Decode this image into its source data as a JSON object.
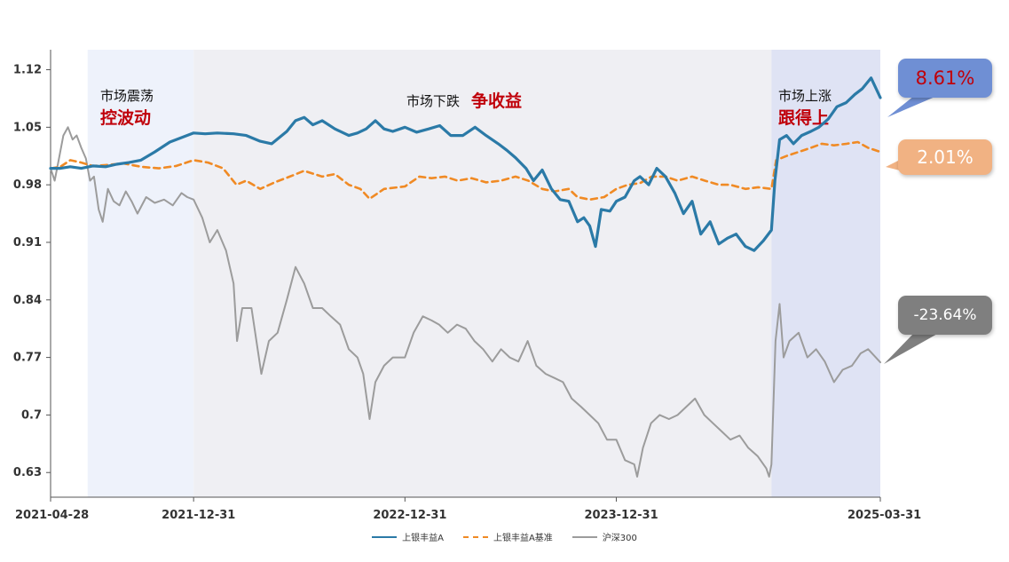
{
  "colors": {
    "fund": "#2b7aa7",
    "benchmark": "#f08a24",
    "index": "#9c9c9c",
    "band_light": "#eef2fb",
    "band_mid": "#efeff3",
    "band_right": "#dfe3f4",
    "callout_fund": "#6f8fd4",
    "callout_bench": "#f1b283",
    "callout_index": "#7f7f7f",
    "emph_text": "#c0000a",
    "fund_value_text": "#c0000a"
  },
  "phases": [
    {
      "line1": "市场震荡",
      "line2": "控波动"
    },
    {
      "line1": "市场下跌",
      "line2": "争收益"
    },
    {
      "line1": "市场上涨",
      "line2": "跟得上"
    }
  ],
  "callouts": {
    "fund": "8.61%",
    "benchmark": "2.01%",
    "index": "-23.64%"
  },
  "legend": {
    "fund": "上银丰益A",
    "benchmark": "上银丰益A基准",
    "index": "沪深300"
  },
  "chart_data": {
    "type": "line",
    "title": "",
    "xlabel": "",
    "ylabel": "",
    "x_ticks": [
      "2021-04-28",
      "2021-12-31",
      "2022-12-31",
      "2023-12-31",
      "2025-03-31"
    ],
    "y_ticks": [
      "0.63",
      "0.7",
      "0.77",
      "0.84",
      "0.91",
      "0.98",
      "1.05",
      "1.12"
    ],
    "ylim": [
      0.6,
      1.14
    ],
    "xlim": [
      "2021-04-28",
      "2025-03-31"
    ],
    "grid": false,
    "legend_position": "bottom",
    "shaded_periods": [
      {
        "from": "2021-07-01",
        "to": "2021-12-31",
        "fill": "band_light"
      },
      {
        "from": "2021-12-31",
        "to": "2024-09-24",
        "fill": "band_mid"
      },
      {
        "from": "2024-09-24",
        "to": "2025-03-31",
        "fill": "band_right"
      }
    ],
    "series": [
      {
        "name": "上银丰益A",
        "key": "fund",
        "dashed": false,
        "points": [
          [
            "2021-04-28",
            1.0
          ],
          [
            "2021-05-15",
            1.0
          ],
          [
            "2021-06-01",
            1.002
          ],
          [
            "2021-06-20",
            1.0
          ],
          [
            "2021-07-10",
            1.003
          ],
          [
            "2021-08-01",
            1.002
          ],
          [
            "2021-08-20",
            1.005
          ],
          [
            "2021-09-10",
            1.007
          ],
          [
            "2021-10-01",
            1.01
          ],
          [
            "2021-10-25",
            1.02
          ],
          [
            "2021-11-20",
            1.032
          ],
          [
            "2021-12-31",
            1.043
          ],
          [
            "2022-01-20",
            1.042
          ],
          [
            "2022-02-10",
            1.043
          ],
          [
            "2022-03-10",
            1.042
          ],
          [
            "2022-04-01",
            1.04
          ],
          [
            "2022-04-25",
            1.033
          ],
          [
            "2022-05-15",
            1.03
          ],
          [
            "2022-06-10",
            1.045
          ],
          [
            "2022-06-25",
            1.058
          ],
          [
            "2022-07-10",
            1.062
          ],
          [
            "2022-07-25",
            1.053
          ],
          [
            "2022-08-10",
            1.058
          ],
          [
            "2022-09-01",
            1.048
          ],
          [
            "2022-09-25",
            1.04
          ],
          [
            "2022-10-10",
            1.043
          ],
          [
            "2022-10-25",
            1.048
          ],
          [
            "2022-11-10",
            1.058
          ],
          [
            "2022-11-25",
            1.048
          ],
          [
            "2022-12-10",
            1.045
          ],
          [
            "2022-12-31",
            1.05
          ],
          [
            "2023-01-20",
            1.044
          ],
          [
            "2023-02-10",
            1.048
          ],
          [
            "2023-03-01",
            1.052
          ],
          [
            "2023-03-20",
            1.04
          ],
          [
            "2023-04-10",
            1.04
          ],
          [
            "2023-05-01",
            1.05
          ],
          [
            "2023-05-20",
            1.04
          ],
          [
            "2023-06-10",
            1.03
          ],
          [
            "2023-06-25",
            1.022
          ],
          [
            "2023-07-10",
            1.013
          ],
          [
            "2023-07-28",
            1.0
          ],
          [
            "2023-08-10",
            0.985
          ],
          [
            "2023-08-25",
            0.998
          ],
          [
            "2023-09-10",
            0.975
          ],
          [
            "2023-09-25",
            0.962
          ],
          [
            "2023-10-10",
            0.96
          ],
          [
            "2023-10-25",
            0.935
          ],
          [
            "2023-11-05",
            0.94
          ],
          [
            "2023-11-15",
            0.93
          ],
          [
            "2023-11-25",
            0.905
          ],
          [
            "2023-12-05",
            0.95
          ],
          [
            "2023-12-20",
            0.948
          ],
          [
            "2023-12-31",
            0.96
          ],
          [
            "2024-01-15",
            0.965
          ],
          [
            "2024-01-31",
            0.985
          ],
          [
            "2024-02-10",
            0.99
          ],
          [
            "2024-02-25",
            0.98
          ],
          [
            "2024-03-10",
            1.0
          ],
          [
            "2024-03-25",
            0.99
          ],
          [
            "2024-04-10",
            0.97
          ],
          [
            "2024-04-25",
            0.945
          ],
          [
            "2024-05-10",
            0.96
          ],
          [
            "2024-05-25",
            0.92
          ],
          [
            "2024-06-10",
            0.935
          ],
          [
            "2024-06-25",
            0.908
          ],
          [
            "2024-07-10",
            0.915
          ],
          [
            "2024-07-25",
            0.92
          ],
          [
            "2024-08-10",
            0.905
          ],
          [
            "2024-08-25",
            0.9
          ],
          [
            "2024-09-10",
            0.912
          ],
          [
            "2024-09-24",
            0.925
          ],
          [
            "2024-09-30",
            0.985
          ],
          [
            "2024-10-08",
            1.035
          ],
          [
            "2024-10-20",
            1.04
          ],
          [
            "2024-11-01",
            1.03
          ],
          [
            "2024-11-15",
            1.04
          ],
          [
            "2024-12-01",
            1.045
          ],
          [
            "2024-12-15",
            1.05
          ],
          [
            "2024-12-31",
            1.06
          ],
          [
            "2025-01-15",
            1.075
          ],
          [
            "2025-01-31",
            1.08
          ],
          [
            "2025-02-15",
            1.09
          ],
          [
            "2025-02-28",
            1.097
          ],
          [
            "2025-03-15",
            1.11
          ],
          [
            "2025-03-31",
            1.086
          ]
        ]
      },
      {
        "name": "上银丰益A基准",
        "key": "benchmark",
        "dashed": true,
        "points": [
          [
            "2021-04-28",
            1.0
          ],
          [
            "2021-05-15",
            1.002
          ],
          [
            "2021-06-01",
            1.01
          ],
          [
            "2021-06-20",
            1.007
          ],
          [
            "2021-07-10",
            1.003
          ],
          [
            "2021-08-01",
            1.004
          ],
          [
            "2021-09-01",
            1.006
          ],
          [
            "2021-10-01",
            1.002
          ],
          [
            "2021-11-01",
            1.0
          ],
          [
            "2021-12-01",
            1.003
          ],
          [
            "2021-12-31",
            1.01
          ],
          [
            "2022-01-25",
            1.007
          ],
          [
            "2022-02-20",
            1.0
          ],
          [
            "2022-03-15",
            0.98
          ],
          [
            "2022-04-01",
            0.985
          ],
          [
            "2022-04-25",
            0.975
          ],
          [
            "2022-05-20",
            0.983
          ],
          [
            "2022-06-15",
            0.99
          ],
          [
            "2022-07-10",
            0.997
          ],
          [
            "2022-08-10",
            0.99
          ],
          [
            "2022-09-01",
            0.993
          ],
          [
            "2022-09-25",
            0.98
          ],
          [
            "2022-10-15",
            0.975
          ],
          [
            "2022-10-31",
            0.963
          ],
          [
            "2022-11-25",
            0.975
          ],
          [
            "2022-12-31",
            0.978
          ],
          [
            "2023-01-25",
            0.99
          ],
          [
            "2023-02-15",
            0.988
          ],
          [
            "2023-03-10",
            0.99
          ],
          [
            "2023-04-01",
            0.985
          ],
          [
            "2023-04-25",
            0.988
          ],
          [
            "2023-05-20",
            0.983
          ],
          [
            "2023-06-15",
            0.985
          ],
          [
            "2023-07-10",
            0.99
          ],
          [
            "2023-08-01",
            0.985
          ],
          [
            "2023-08-25",
            0.975
          ],
          [
            "2023-09-15",
            0.972
          ],
          [
            "2023-10-10",
            0.975
          ],
          [
            "2023-10-25",
            0.965
          ],
          [
            "2023-11-15",
            0.962
          ],
          [
            "2023-12-10",
            0.965
          ],
          [
            "2023-12-31",
            0.975
          ],
          [
            "2024-01-20",
            0.98
          ],
          [
            "2024-02-10",
            0.982
          ],
          [
            "2024-03-01",
            0.99
          ],
          [
            "2024-03-25",
            0.99
          ],
          [
            "2024-04-15",
            0.985
          ],
          [
            "2024-05-10",
            0.99
          ],
          [
            "2024-06-01",
            0.985
          ],
          [
            "2024-06-25",
            0.98
          ],
          [
            "2024-07-15",
            0.98
          ],
          [
            "2024-08-10",
            0.975
          ],
          [
            "2024-09-01",
            0.977
          ],
          [
            "2024-09-24",
            0.975
          ],
          [
            "2024-10-02",
            1.01
          ],
          [
            "2024-10-20",
            1.015
          ],
          [
            "2024-11-10",
            1.02
          ],
          [
            "2024-12-01",
            1.025
          ],
          [
            "2024-12-20",
            1.03
          ],
          [
            "2025-01-10",
            1.028
          ],
          [
            "2025-02-01",
            1.03
          ],
          [
            "2025-02-20",
            1.032
          ],
          [
            "2025-03-10",
            1.025
          ],
          [
            "2025-03-31",
            1.02
          ]
        ]
      },
      {
        "name": "沪深300",
        "key": "index",
        "dashed": false,
        "points": [
          [
            "2021-04-28",
            1.0
          ],
          [
            "2021-05-05",
            0.985
          ],
          [
            "2021-05-12",
            1.01
          ],
          [
            "2021-05-20",
            1.04
          ],
          [
            "2021-05-28",
            1.05
          ],
          [
            "2021-06-05",
            1.035
          ],
          [
            "2021-06-12",
            1.04
          ],
          [
            "2021-06-20",
            1.025
          ],
          [
            "2021-06-28",
            1.012
          ],
          [
            "2021-07-05",
            0.985
          ],
          [
            "2021-07-12",
            0.99
          ],
          [
            "2021-07-20",
            0.95
          ],
          [
            "2021-07-27",
            0.935
          ],
          [
            "2021-08-05",
            0.975
          ],
          [
            "2021-08-15",
            0.96
          ],
          [
            "2021-08-25",
            0.955
          ],
          [
            "2021-09-05",
            0.972
          ],
          [
            "2021-09-15",
            0.96
          ],
          [
            "2021-09-25",
            0.945
          ],
          [
            "2021-10-10",
            0.965
          ],
          [
            "2021-10-25",
            0.958
          ],
          [
            "2021-11-10",
            0.962
          ],
          [
            "2021-11-25",
            0.955
          ],
          [
            "2021-12-10",
            0.97
          ],
          [
            "2021-12-20",
            0.965
          ],
          [
            "2021-12-31",
            0.962
          ],
          [
            "2022-01-15",
            0.94
          ],
          [
            "2022-01-28",
            0.91
          ],
          [
            "2022-02-10",
            0.925
          ],
          [
            "2022-02-25",
            0.9
          ],
          [
            "2022-03-10",
            0.86
          ],
          [
            "2022-03-16",
            0.79
          ],
          [
            "2022-03-25",
            0.83
          ],
          [
            "2022-04-10",
            0.83
          ],
          [
            "2022-04-27",
            0.75
          ],
          [
            "2022-05-10",
            0.79
          ],
          [
            "2022-05-25",
            0.8
          ],
          [
            "2022-06-10",
            0.84
          ],
          [
            "2022-06-25",
            0.88
          ],
          [
            "2022-07-10",
            0.86
          ],
          [
            "2022-07-25",
            0.83
          ],
          [
            "2022-08-10",
            0.83
          ],
          [
            "2022-08-25",
            0.82
          ],
          [
            "2022-09-10",
            0.81
          ],
          [
            "2022-09-25",
            0.78
          ],
          [
            "2022-10-10",
            0.77
          ],
          [
            "2022-10-20",
            0.75
          ],
          [
            "2022-10-31",
            0.695
          ],
          [
            "2022-11-10",
            0.74
          ],
          [
            "2022-11-25",
            0.76
          ],
          [
            "2022-12-10",
            0.77
          ],
          [
            "2022-12-31",
            0.77
          ],
          [
            "2023-01-15",
            0.8
          ],
          [
            "2023-01-31",
            0.82
          ],
          [
            "2023-02-15",
            0.815
          ],
          [
            "2023-02-28",
            0.81
          ],
          [
            "2023-03-15",
            0.8
          ],
          [
            "2023-03-31",
            0.81
          ],
          [
            "2023-04-15",
            0.805
          ],
          [
            "2023-04-30",
            0.79
          ],
          [
            "2023-05-15",
            0.78
          ],
          [
            "2023-05-31",
            0.765
          ],
          [
            "2023-06-15",
            0.78
          ],
          [
            "2023-06-30",
            0.77
          ],
          [
            "2023-07-15",
            0.765
          ],
          [
            "2023-07-31",
            0.79
          ],
          [
            "2023-08-15",
            0.76
          ],
          [
            "2023-08-31",
            0.75
          ],
          [
            "2023-09-15",
            0.745
          ],
          [
            "2023-09-30",
            0.74
          ],
          [
            "2023-10-15",
            0.72
          ],
          [
            "2023-10-31",
            0.71
          ],
          [
            "2023-11-15",
            0.7
          ],
          [
            "2023-11-30",
            0.69
          ],
          [
            "2023-12-15",
            0.67
          ],
          [
            "2023-12-31",
            0.67
          ],
          [
            "2024-01-15",
            0.645
          ],
          [
            "2024-01-31",
            0.64
          ],
          [
            "2024-02-05",
            0.625
          ],
          [
            "2024-02-15",
            0.66
          ],
          [
            "2024-02-29",
            0.69
          ],
          [
            "2024-03-15",
            0.7
          ],
          [
            "2024-03-31",
            0.695
          ],
          [
            "2024-04-15",
            0.7
          ],
          [
            "2024-04-30",
            0.71
          ],
          [
            "2024-05-15",
            0.72
          ],
          [
            "2024-05-31",
            0.7
          ],
          [
            "2024-06-15",
            0.69
          ],
          [
            "2024-06-30",
            0.68
          ],
          [
            "2024-07-15",
            0.67
          ],
          [
            "2024-07-31",
            0.675
          ],
          [
            "2024-08-15",
            0.66
          ],
          [
            "2024-08-31",
            0.65
          ],
          [
            "2024-09-15",
            0.635
          ],
          [
            "2024-09-20",
            0.625
          ],
          [
            "2024-09-24",
            0.64
          ],
          [
            "2024-10-01",
            0.79
          ],
          [
            "2024-10-08",
            0.835
          ],
          [
            "2024-10-15",
            0.77
          ],
          [
            "2024-10-25",
            0.79
          ],
          [
            "2024-11-10",
            0.8
          ],
          [
            "2024-11-25",
            0.77
          ],
          [
            "2024-12-10",
            0.78
          ],
          [
            "2024-12-25",
            0.765
          ],
          [
            "2025-01-10",
            0.74
          ],
          [
            "2025-01-25",
            0.755
          ],
          [
            "2025-02-10",
            0.76
          ],
          [
            "2025-02-25",
            0.775
          ],
          [
            "2025-03-10",
            0.78
          ],
          [
            "2025-03-31",
            0.764
          ]
        ]
      }
    ]
  }
}
